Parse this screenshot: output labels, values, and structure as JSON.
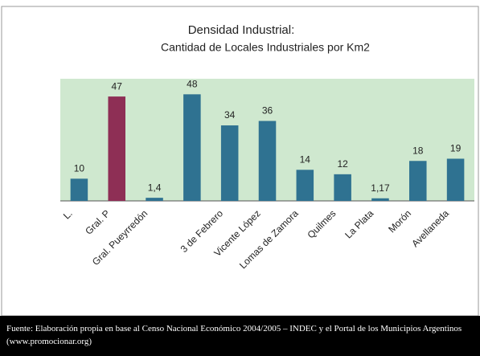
{
  "chart_data": {
    "type": "bar",
    "title": "Densidad Industrial:",
    "subtitle": "Cantidad de Locales Industriales por Km2",
    "categories": [
      "L.",
      "Gral. P",
      "Gral. Pueyrredón",
      null,
      "3 de Febrero",
      "Vicente López",
      "Lomas de Zamora",
      "Quilmes",
      "La Plata",
      "Morón",
      "Avellaneda"
    ],
    "values": [
      10,
      47,
      1.4,
      48,
      34,
      36,
      14,
      12,
      1.17,
      18,
      19
    ],
    "value_labels": [
      "10",
      "47",
      "1,4",
      "48",
      "34",
      "36",
      "14",
      "12",
      "1,17",
      "18",
      "19"
    ],
    "colors": [
      "#2f7291",
      "#8e2f55",
      "#2f7291",
      "#2f7291",
      "#2f7291",
      "#2f7291",
      "#2f7291",
      "#2f7291",
      "#2f7291",
      "#2f7291",
      "#2f7291"
    ],
    "ylim": [
      0,
      55
    ],
    "source": "Fuente: Elaboración propia en base al Censo Nacional Económico 2004/2005 – INDEC y el Portal de los Municipios Argentinos (www.promocionar.org)"
  }
}
